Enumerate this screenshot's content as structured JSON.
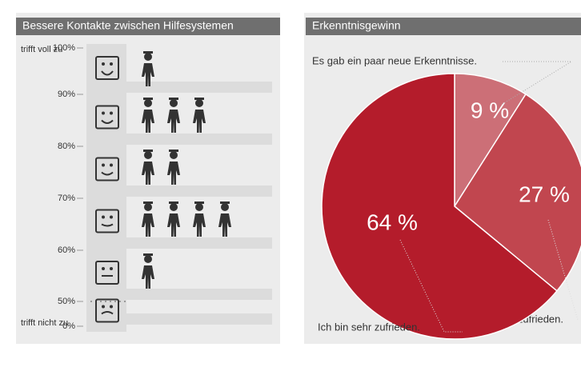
{
  "chart_data": [
    {
      "type": "pictogram",
      "title": "Bessere Kontakte zwischen Hilfesystemen",
      "top_label": "trifft voll zu",
      "bottom_label": "trifft nicht zu",
      "yticks": [
        {
          "value": 100,
          "label": "100%"
        },
        {
          "value": 90,
          "label": "90%"
        },
        {
          "value": 80,
          "label": "80%"
        },
        {
          "value": 70,
          "label": "70%"
        },
        {
          "value": 60,
          "label": "60%"
        },
        {
          "value": 50,
          "label": "50%"
        },
        {
          "value": 0,
          "label": "0%"
        }
      ],
      "values": [
        1,
        3,
        2,
        4,
        1,
        0
      ],
      "color": "#333333"
    },
    {
      "type": "pie",
      "title": "Erkenntnisgewinn",
      "categories": [
        "Es gab ein paar neue Erkenntnisse.",
        "Ich bin zufrieden.",
        "Ich bin sehr zufrieden."
      ],
      "values": [
        9,
        27,
        64
      ],
      "value_labels": [
        "9 %",
        "27 %",
        "64 %"
      ],
      "colors": [
        "#cc6f77",
        "#c1464f",
        "#b41c2b"
      ]
    }
  ]
}
